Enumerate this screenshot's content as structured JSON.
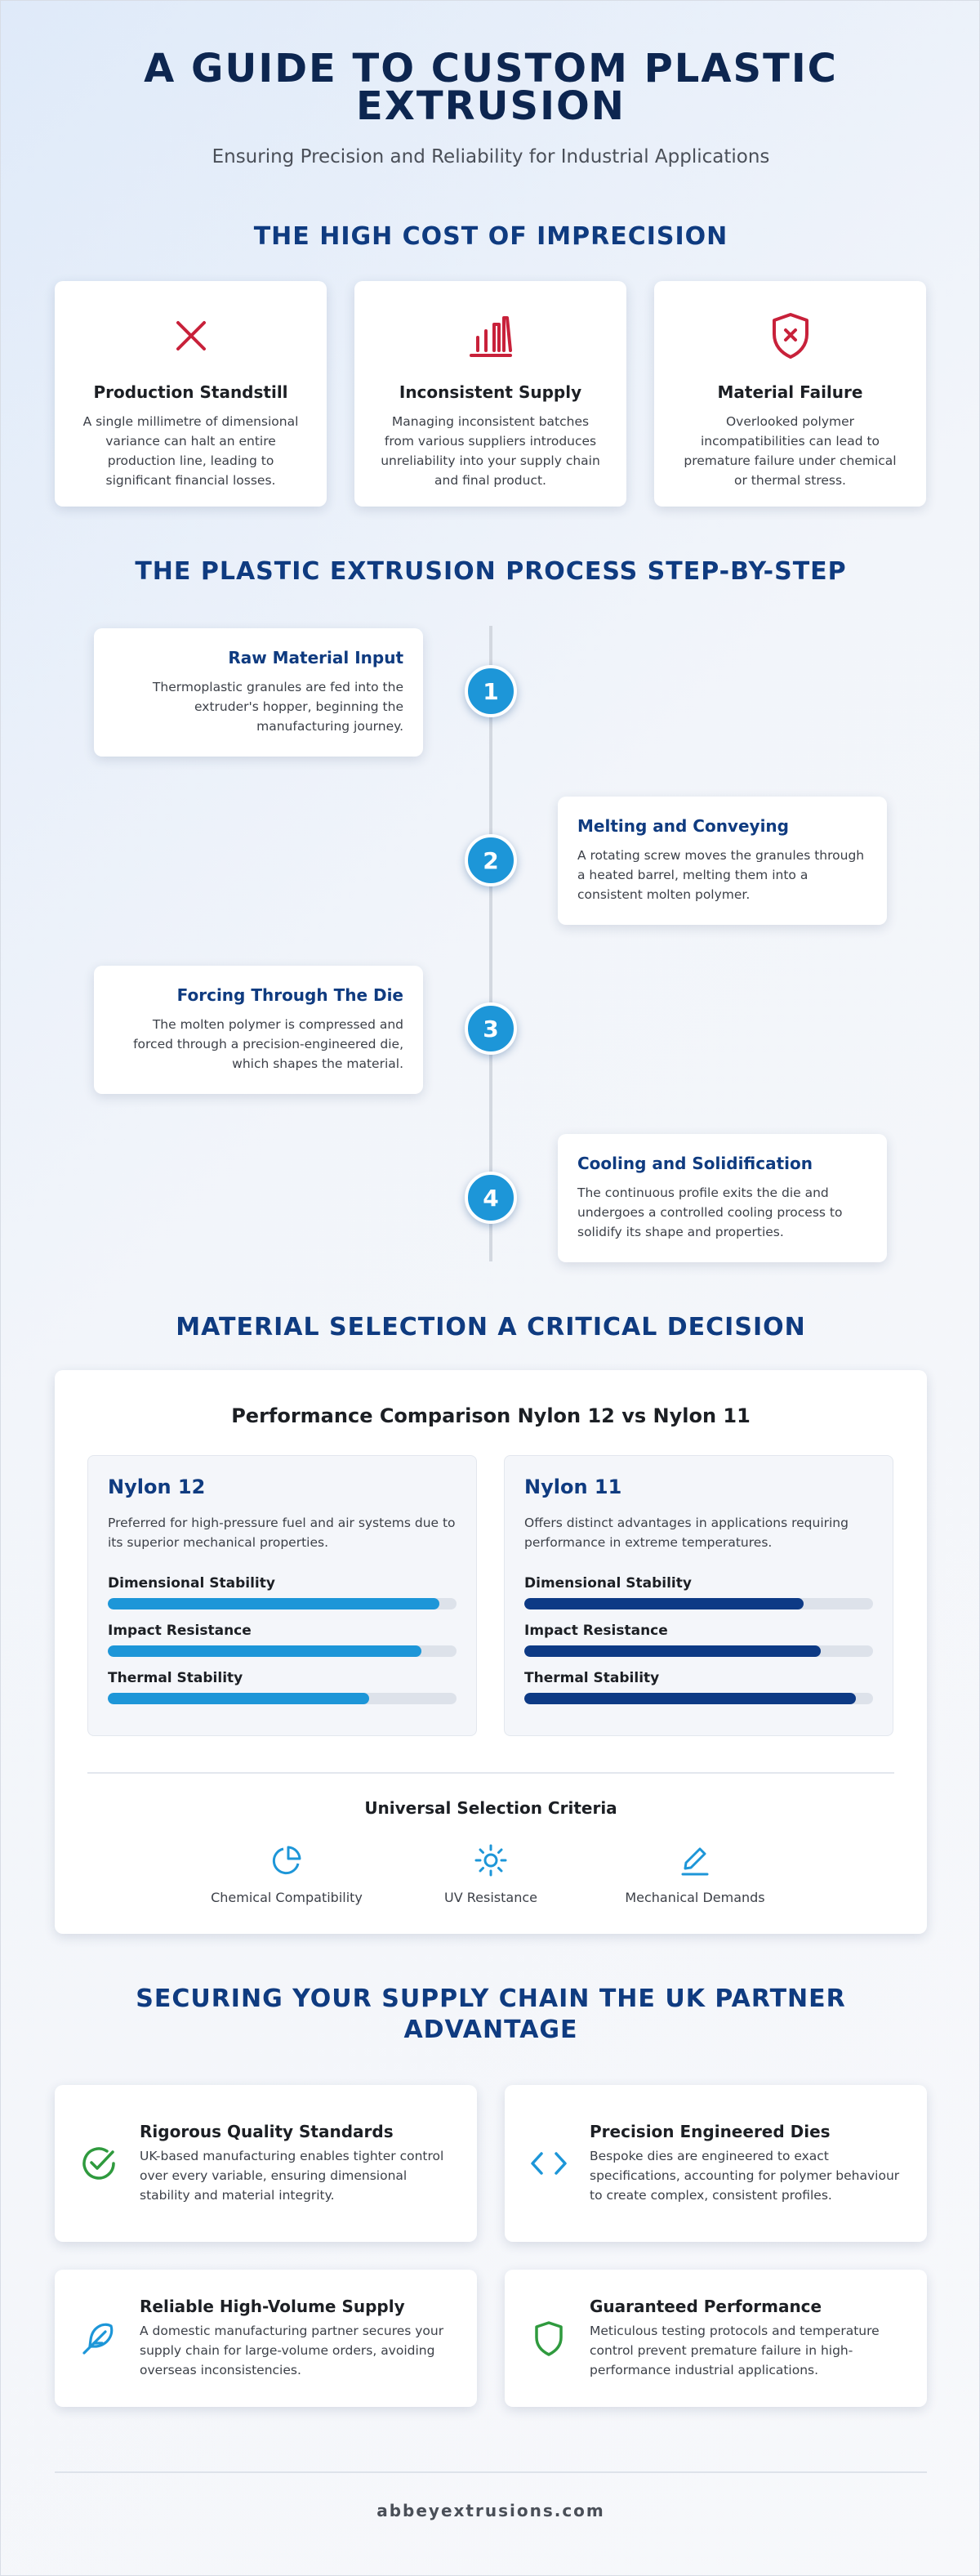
{
  "header": {
    "title": "A GUIDE TO CUSTOM PLASTIC EXTRUSION",
    "subtitle": "Ensuring Precision and Reliability for Industrial Applications"
  },
  "cost_section": {
    "title": "THE HIGH COST OF IMPRECISION",
    "cards": [
      {
        "icon": "close-x-icon",
        "title": "Production Standstill",
        "text": "A single millimetre of dimensional variance can halt an entire production line, leading to significant financial losses."
      },
      {
        "icon": "bar-chart-icon",
        "title": "Inconsistent Supply",
        "text": "Managing inconsistent batches from various suppliers introduces unreliability into your supply chain and final product."
      },
      {
        "icon": "shield-x-icon",
        "title": "Material Failure",
        "text": "Overlooked polymer incompatibilities can lead to premature failure under chemical or thermal stress."
      }
    ]
  },
  "process_section": {
    "title": "THE PLASTIC EXTRUSION PROCESS STEP-BY-STEP",
    "steps": [
      {
        "number": "1",
        "title": "Raw Material Input",
        "text": "Thermoplastic granules are fed into the extruder's hopper, beginning the manufacturing journey."
      },
      {
        "number": "2",
        "title": "Melting and Conveying",
        "text": "A rotating screw moves the granules through a heated barrel, melting them into a consistent molten polymer."
      },
      {
        "number": "3",
        "title": "Forcing Through The Die",
        "text": "The molten polymer is compressed and forced through a precision-engineered die, which shapes the material."
      },
      {
        "number": "4",
        "title": "Cooling and Solidification",
        "text": "The continuous profile exits the die and undergoes a controlled cooling process to solidify its shape and properties."
      }
    ]
  },
  "material_section": {
    "title": "MATERIAL SELECTION A CRITICAL DECISION",
    "comparison_title": "Performance Comparison Nylon 12 vs Nylon 11",
    "materials": [
      {
        "name": "Nylon 12",
        "description": "Preferred for high-pressure fuel and air systems due to its superior mechanical properties.",
        "color": "#1d96d8",
        "metrics": [
          {
            "label": "Dimensional Stability",
            "value": 0.95
          },
          {
            "label": "Impact Resistance",
            "value": 0.9
          },
          {
            "label": "Thermal Stability",
            "value": 0.75
          }
        ]
      },
      {
        "name": "Nylon 11",
        "description": "Offers distinct advantages in applications requiring performance in extreme temperatures.",
        "color": "#0d3a85",
        "metrics": [
          {
            "label": "Dimensional Stability",
            "value": 0.8
          },
          {
            "label": "Impact Resistance",
            "value": 0.85
          },
          {
            "label": "Thermal Stability",
            "value": 0.95
          }
        ]
      }
    ],
    "criteria_title": "Universal Selection Criteria",
    "criteria": [
      {
        "icon": "pie-chart-icon",
        "label": "Chemical Compatibility"
      },
      {
        "icon": "sun-icon",
        "label": "UV Resistance"
      },
      {
        "icon": "pencil-icon",
        "label": "Mechanical Demands"
      }
    ]
  },
  "supply_section": {
    "title": "SECURING YOUR SUPPLY CHAIN THE UK PARTNER ADVANTAGE",
    "cards": [
      {
        "icon": "check-circle-icon",
        "title": "Rigorous Quality Standards",
        "text": "UK-based manufacturing enables tighter control over every variable, ensuring dimensional stability and material integrity."
      },
      {
        "icon": "code-brackets-icon",
        "title": "Precision Engineered Dies",
        "text": "Bespoke dies are engineered to exact specifications, accounting for polymer behaviour to create complex, consistent profiles."
      },
      {
        "icon": "feather-icon",
        "title": "Reliable High-Volume Supply",
        "text": "A domestic manufacturing partner secures your supply chain for large-volume orders, avoiding overseas inconsistencies."
      },
      {
        "icon": "shield-icon",
        "title": "Guaranteed Performance",
        "text": "Meticulous testing protocols and temperature control prevent premature failure in high-performance industrial applications."
      }
    ]
  },
  "footer": {
    "website": "abbeyextrusions.com"
  },
  "colors": {
    "navy": "#0d2650",
    "accent_blue": "#1d96d8",
    "dark_blue": "#0d3a85",
    "danger_red": "#c8213a",
    "success_green": "#2f9a3e"
  }
}
